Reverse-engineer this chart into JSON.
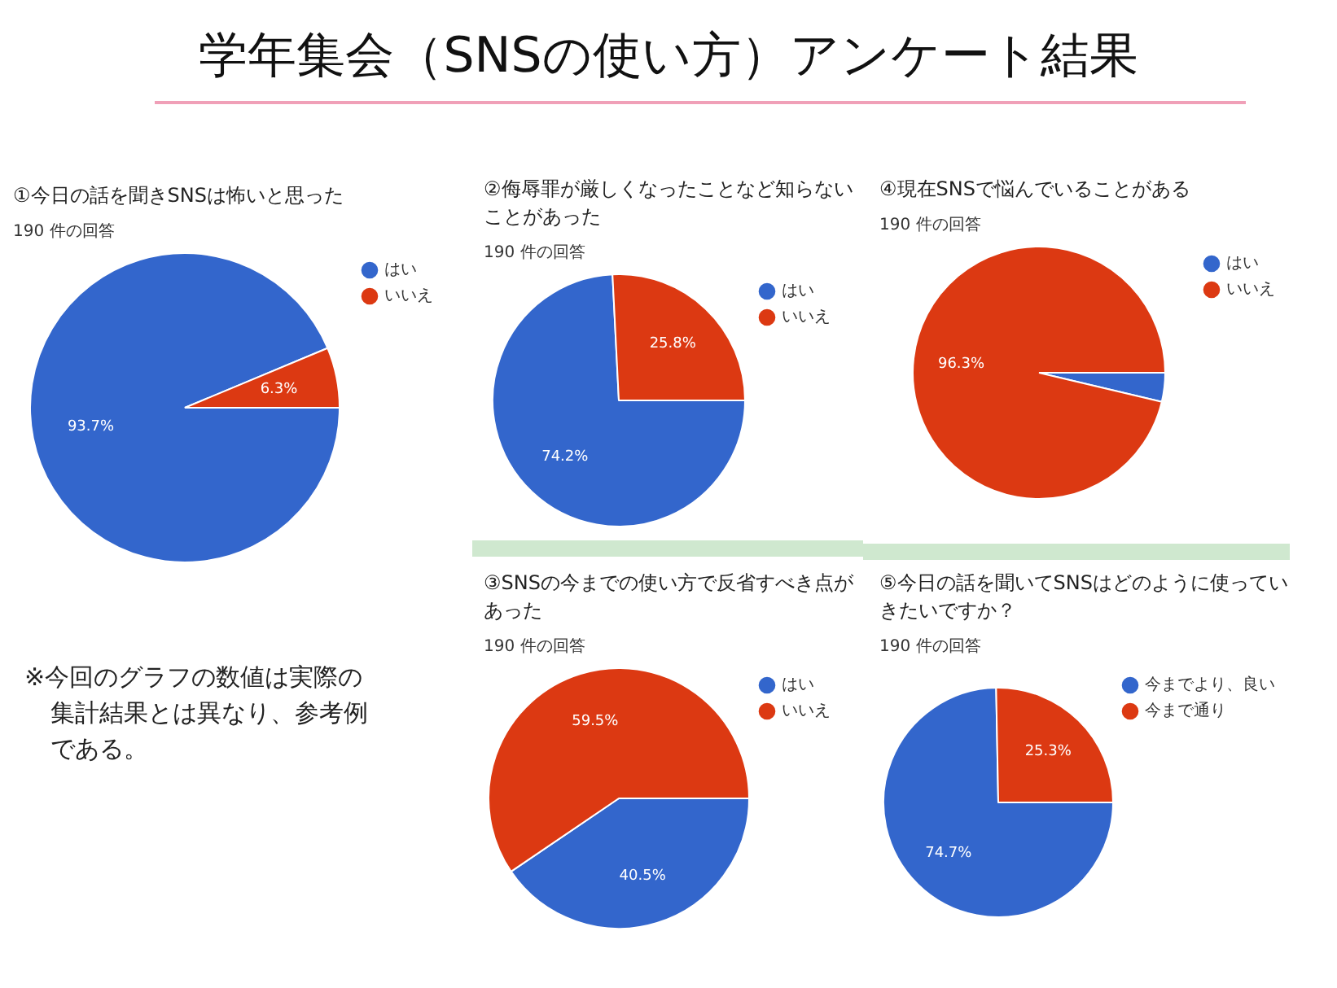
{
  "chart_data": [
    {
      "type": "other",
      "title": "学年集会（SNSの使い方）アンケート結果",
      "annotations": [
        "※今回のグラフの数値は実際の集計結果とは異なり、参考例である。"
      ]
    },
    {
      "type": "pie",
      "title": "①今日の話を聞きSNSは怖いと思った",
      "subtitle": "190 件の回答",
      "categories": [
        "はい",
        "いいえ"
      ],
      "values": [
        93.7,
        6.3
      ],
      "colors": [
        "#3366cc",
        "#dc3912"
      ],
      "value_labels": [
        "93.7%",
        "6.3%"
      ],
      "legend": "right"
    },
    {
      "type": "pie",
      "title": "②侮辱罪が厳しくなったことなど知らないことがあった",
      "subtitle": "190 件の回答",
      "categories": [
        "はい",
        "いいえ"
      ],
      "values": [
        74.2,
        25.8
      ],
      "colors": [
        "#3366cc",
        "#dc3912"
      ],
      "value_labels": [
        "74.2%",
        "25.8%"
      ],
      "legend": "right"
    },
    {
      "type": "pie",
      "title": "④現在SNSで悩んでいることがある",
      "subtitle": "190 件の回答",
      "categories": [
        "はい",
        "いいえ"
      ],
      "values": [
        3.7,
        96.3
      ],
      "colors": [
        "#3366cc",
        "#dc3912"
      ],
      "value_labels": [
        null,
        "96.3%"
      ],
      "legend": "right"
    },
    {
      "type": "pie",
      "title": "③SNSの今までの使い方で反省すべき点があった",
      "subtitle": "190 件の回答",
      "categories": [
        "はい",
        "いいえ"
      ],
      "values": [
        40.5,
        59.5
      ],
      "colors": [
        "#3366cc",
        "#dc3912"
      ],
      "value_labels": [
        "40.5%",
        "59.5%"
      ],
      "legend": "right"
    },
    {
      "type": "pie",
      "title": "⑤今日の話を聞いてSNSはどのように使っていきたいですか？",
      "subtitle": "190 件の回答",
      "categories": [
        "今までより、良い",
        "今まで通り"
      ],
      "values": [
        74.7,
        25.3
      ],
      "colors": [
        "#3366cc",
        "#dc3912"
      ],
      "value_labels": [
        "74.7%",
        "25.3%"
      ],
      "legend": "right"
    }
  ]
}
